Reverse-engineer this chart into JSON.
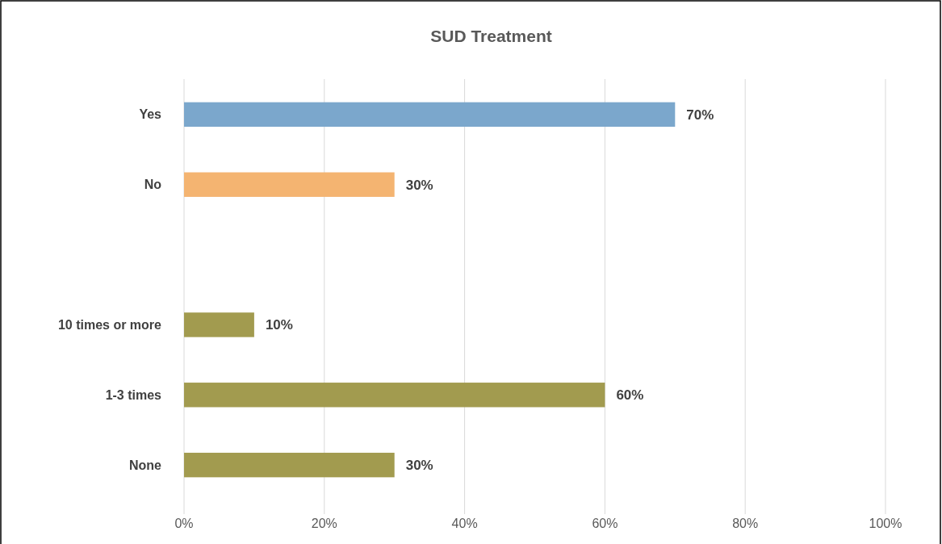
{
  "chart_data": {
    "type": "bar",
    "orientation": "horizontal",
    "title": "SUD Treatment",
    "categories": [
      "Yes",
      "No",
      null,
      "10 times or more",
      "1-3 times",
      "None"
    ],
    "values": [
      70,
      30,
      null,
      10,
      60,
      30
    ],
    "colors": [
      "#7ba7cc",
      "#f4b471",
      null,
      "#a29b4f",
      "#a29b4f",
      "#a29b4f"
    ],
    "value_labels": [
      "70%",
      "30%",
      null,
      "10%",
      "60%",
      "30%"
    ],
    "xlim": [
      0,
      100
    ],
    "xticks": [
      {
        "value": 0,
        "label": "0%"
      },
      {
        "value": 20,
        "label": "20%"
      },
      {
        "value": 40,
        "label": "40%"
      },
      {
        "value": 60,
        "label": "60%"
      },
      {
        "value": 80,
        "label": "80%"
      },
      {
        "value": 100,
        "label": "100%"
      }
    ],
    "grid": "x"
  }
}
